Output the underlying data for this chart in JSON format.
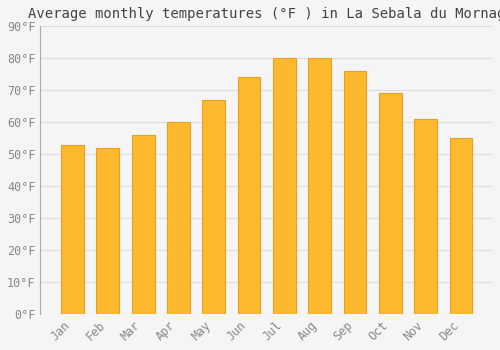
{
  "title": "Average monthly temperatures (°F ) in La Sebala du Mornag",
  "months": [
    "Jan",
    "Feb",
    "Mar",
    "Apr",
    "May",
    "Jun",
    "Jul",
    "Aug",
    "Sep",
    "Oct",
    "Nov",
    "Dec"
  ],
  "values": [
    53,
    52,
    56,
    60,
    67,
    74,
    80,
    80,
    76,
    69,
    61,
    55
  ],
  "bar_color": "#FDB92E",
  "bar_edge_color": "#E8A020",
  "background_color": "#F5F5F5",
  "grid_color": "#DDDDDD",
  "text_color": "#888888",
  "title_color": "#444444",
  "ylim": [
    0,
    90
  ],
  "yticks": [
    0,
    10,
    20,
    30,
    40,
    50,
    60,
    70,
    80,
    90
  ],
  "ytick_labels": [
    "0°F",
    "10°F",
    "20°F",
    "30°F",
    "40°F",
    "50°F",
    "60°F",
    "70°F",
    "80°F",
    "90°F"
  ],
  "title_fontsize": 10,
  "tick_fontsize": 8.5,
  "bar_width": 0.65
}
